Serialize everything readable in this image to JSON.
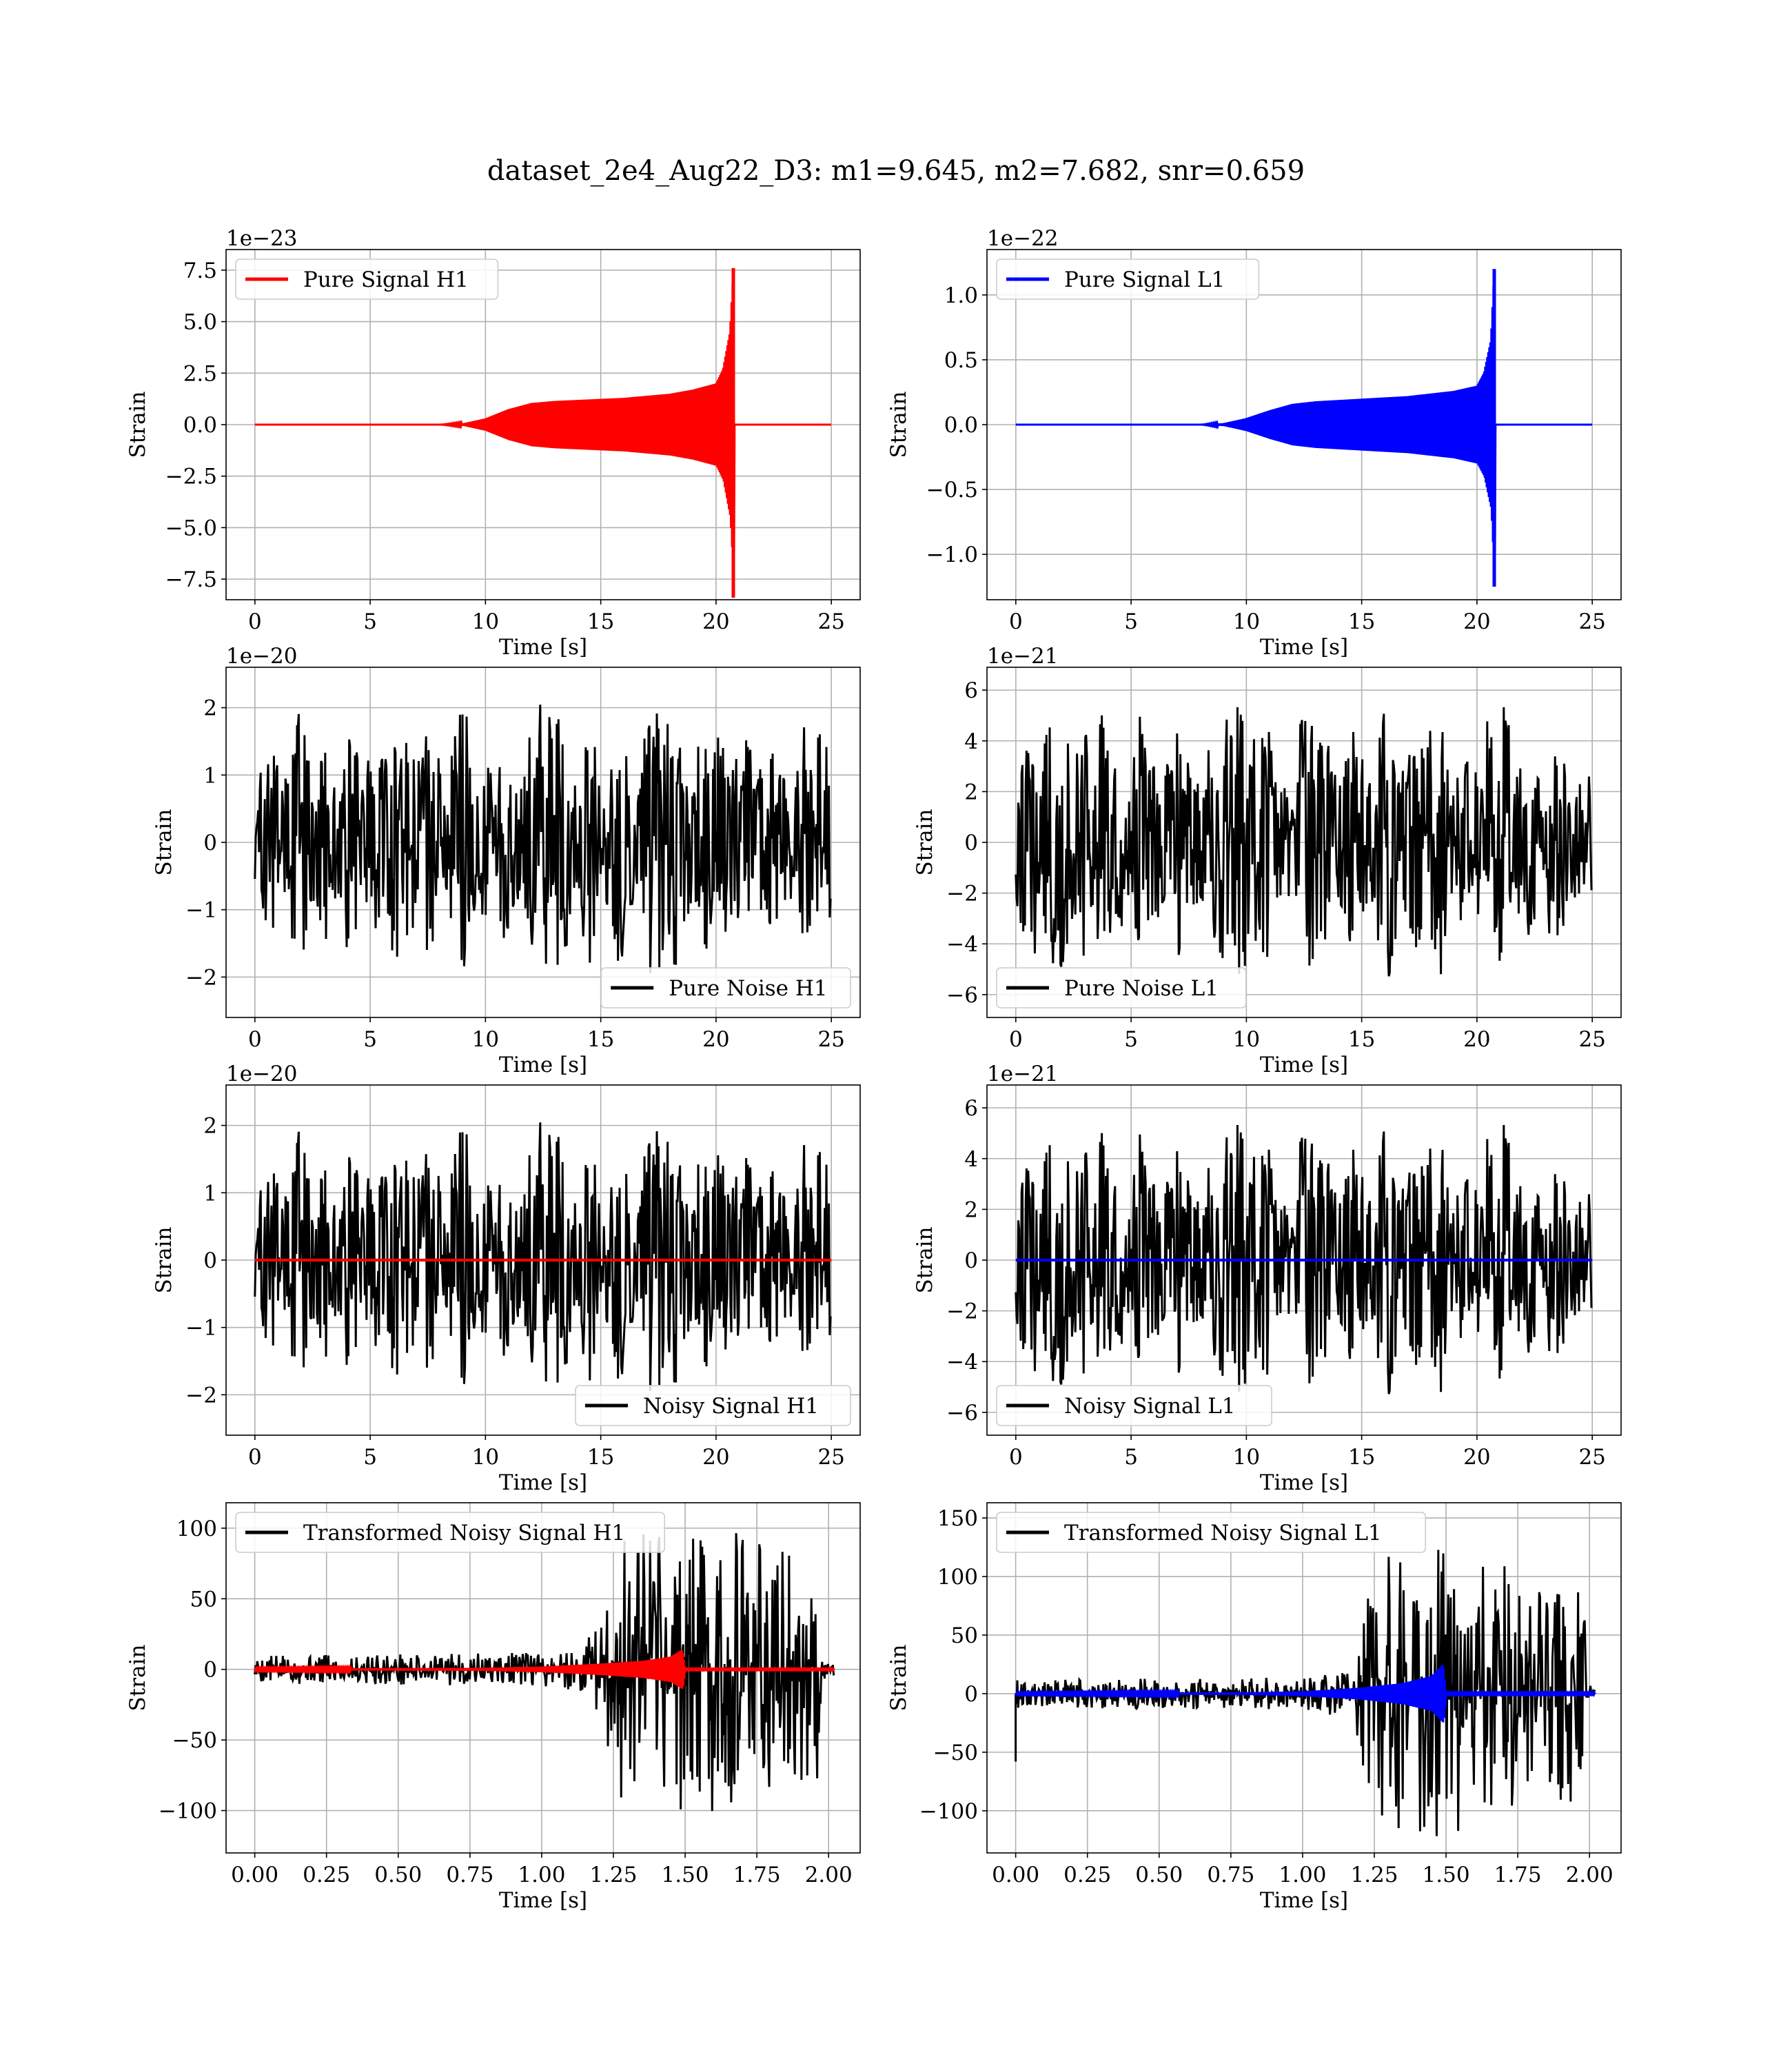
{
  "figure": {
    "title": "dataset_2e4_Aug22_D3: m1=9.645, m2=7.682, snr=0.659"
  },
  "colors": {
    "h1": "#ff0000",
    "l1": "#0000ff",
    "noise": "#000000",
    "grid": "#b0b0b0"
  },
  "chart_data": [
    {
      "id": "pure-signal-h1",
      "type": "line",
      "title": "",
      "xlabel": "Time [s]",
      "ylabel": "Strain",
      "xlim": [
        -1.25,
        26.25
      ],
      "ylim": [
        -8.5,
        8.5
      ],
      "exponent": "1e−23",
      "xticks": [
        0,
        5,
        10,
        15,
        20,
        25
      ],
      "xtick_labels": [
        "0",
        "5",
        "10",
        "15",
        "20",
        "25"
      ],
      "yticks": [
        -7.5,
        -5.0,
        -2.5,
        0.0,
        2.5,
        5.0,
        7.5
      ],
      "ytick_labels": [
        "−7.5",
        "−5.0",
        "−2.5",
        "0.0",
        "2.5",
        "5.0",
        "7.5"
      ],
      "legend": {
        "loc": "upper-left",
        "entries": [
          {
            "label": "Pure Signal H1",
            "color": "#ff0000"
          }
        ]
      },
      "grid": true,
      "series": [
        {
          "name": "Pure Signal H1",
          "kind": "chirp",
          "color": "#ff0000",
          "envelope_x": [
            0,
            8,
            9,
            10,
            11,
            12,
            13,
            14,
            15,
            16,
            17,
            18,
            19,
            20,
            20.3,
            20.6,
            20.75,
            20.8,
            25
          ],
          "envelope_amp": [
            0,
            0,
            0.05,
            0.3,
            0.75,
            1.05,
            1.15,
            1.2,
            1.25,
            1.3,
            1.4,
            1.5,
            1.7,
            2.0,
            2.7,
            4.5,
            7.6,
            0,
            0
          ],
          "peak_x": 20.75,
          "peak_max": 7.6,
          "peak_min": -8.4
        }
      ]
    },
    {
      "id": "pure-signal-l1",
      "type": "line",
      "title": "",
      "xlabel": "Time [s]",
      "ylabel": "Strain",
      "xlim": [
        -1.25,
        26.25
      ],
      "ylim": [
        -1.35,
        1.35
      ],
      "exponent": "1e−22",
      "xticks": [
        0,
        5,
        10,
        15,
        20,
        25
      ],
      "xtick_labels": [
        "0",
        "5",
        "10",
        "15",
        "20",
        "25"
      ],
      "yticks": [
        -1.0,
        -0.5,
        0.0,
        0.5,
        1.0
      ],
      "ytick_labels": [
        "−1.0",
        "−0.5",
        "0.0",
        "0.5",
        "1.0"
      ],
      "legend": {
        "loc": "upper-left",
        "entries": [
          {
            "label": "Pure Signal L1",
            "color": "#0000ff"
          }
        ]
      },
      "grid": true,
      "series": [
        {
          "name": "Pure Signal L1",
          "kind": "chirp",
          "color": "#0000ff",
          "envelope_x": [
            0,
            8,
            9,
            10,
            11,
            12,
            13,
            14,
            15,
            16,
            17,
            18,
            19,
            20,
            20.3,
            20.6,
            20.75,
            20.8,
            25
          ],
          "envelope_amp": [
            0,
            0,
            0.01,
            0.05,
            0.11,
            0.16,
            0.18,
            0.19,
            0.2,
            0.21,
            0.22,
            0.24,
            0.26,
            0.3,
            0.4,
            0.65,
            1.2,
            0,
            0
          ],
          "peak_x": 20.75,
          "peak_max": 1.2,
          "peak_min": -1.25
        }
      ]
    },
    {
      "id": "pure-noise-h1",
      "type": "line",
      "title": "",
      "xlabel": "Time [s]",
      "ylabel": "Strain",
      "xlim": [
        -1.25,
        26.25
      ],
      "ylim": [
        -2.6,
        2.6
      ],
      "exponent": "1e−20",
      "xticks": [
        0,
        5,
        10,
        15,
        20,
        25
      ],
      "xtick_labels": [
        "0",
        "5",
        "10",
        "15",
        "20",
        "25"
      ],
      "yticks": [
        -2,
        -1,
        0,
        1,
        2
      ],
      "ytick_labels": [
        "−2",
        "−1",
        "0",
        "1",
        "2"
      ],
      "legend": {
        "loc": "lower-right",
        "entries": [
          {
            "label": "Pure Noise H1",
            "color": "#000000"
          }
        ]
      },
      "grid": true,
      "series": [
        {
          "name": "Pure Noise H1",
          "kind": "noise",
          "color": "#000000",
          "x_range": [
            0,
            25
          ],
          "amp_max": 2.3,
          "seed": 11
        }
      ]
    },
    {
      "id": "pure-noise-l1",
      "type": "line",
      "title": "",
      "xlabel": "Time [s]",
      "ylabel": "Strain",
      "xlim": [
        -1.25,
        26.25
      ],
      "ylim": [
        -6.9,
        6.9
      ],
      "exponent": "1e−21",
      "xticks": [
        0,
        5,
        10,
        15,
        20,
        25
      ],
      "xtick_labels": [
        "0",
        "5",
        "10",
        "15",
        "20",
        "25"
      ],
      "yticks": [
        -6,
        -4,
        -2,
        0,
        2,
        4,
        6
      ],
      "ytick_labels": [
        "−6",
        "−4",
        "−2",
        "0",
        "2",
        "4",
        "6"
      ],
      "legend": {
        "loc": "lower-left",
        "entries": [
          {
            "label": "Pure Noise L1",
            "color": "#000000"
          }
        ]
      },
      "grid": true,
      "series": [
        {
          "name": "Pure Noise L1",
          "kind": "noise",
          "color": "#000000",
          "x_range": [
            0,
            25
          ],
          "amp_max": 6.2,
          "seed": 23
        }
      ]
    },
    {
      "id": "noisy-signal-h1",
      "type": "line",
      "title": "",
      "xlabel": "Time [s]",
      "ylabel": "Strain",
      "xlim": [
        -1.25,
        26.25
      ],
      "ylim": [
        -2.6,
        2.6
      ],
      "exponent": "1e−20",
      "xticks": [
        0,
        5,
        10,
        15,
        20,
        25
      ],
      "xtick_labels": [
        "0",
        "5",
        "10",
        "15",
        "20",
        "25"
      ],
      "yticks": [
        -2,
        -1,
        0,
        1,
        2
      ],
      "ytick_labels": [
        "−2",
        "−1",
        "0",
        "1",
        "2"
      ],
      "legend": {
        "loc": "lower-right",
        "entries": [
          {
            "label": "Noisy Signal H1",
            "color": "#000000"
          }
        ]
      },
      "grid": true,
      "series": [
        {
          "name": "Noisy Signal H1",
          "kind": "noise",
          "color": "#000000",
          "x_range": [
            0,
            25
          ],
          "amp_max": 2.3,
          "seed": 11
        },
        {
          "kind": "flat",
          "color": "#ff0000",
          "x_range": [
            0,
            25
          ],
          "y": 0
        }
      ]
    },
    {
      "id": "noisy-signal-l1",
      "type": "line",
      "title": "",
      "xlabel": "Time [s]",
      "ylabel": "Strain",
      "xlim": [
        -1.25,
        26.25
      ],
      "ylim": [
        -6.9,
        6.9
      ],
      "exponent": "1e−21",
      "xticks": [
        0,
        5,
        10,
        15,
        20,
        25
      ],
      "xtick_labels": [
        "0",
        "5",
        "10",
        "15",
        "20",
        "25"
      ],
      "yticks": [
        -6,
        -4,
        -2,
        0,
        2,
        4,
        6
      ],
      "ytick_labels": [
        "−6",
        "−4",
        "−2",
        "0",
        "2",
        "4",
        "6"
      ],
      "legend": {
        "loc": "lower-left",
        "entries": [
          {
            "label": "Noisy Signal L1",
            "color": "#000000"
          }
        ]
      },
      "grid": true,
      "series": [
        {
          "name": "Noisy Signal L1",
          "kind": "noise",
          "color": "#000000",
          "x_range": [
            0,
            25
          ],
          "amp_max": 6.2,
          "seed": 23
        },
        {
          "kind": "flat",
          "color": "#0000ff",
          "x_range": [
            0,
            25
          ],
          "y": 0
        }
      ]
    },
    {
      "id": "transformed-noisy-signal-h1",
      "type": "line",
      "title": "",
      "xlabel": "Time [s]",
      "ylabel": "Strain",
      "xlim": [
        -0.1,
        2.11
      ],
      "ylim": [
        -130,
        118
      ],
      "exponent": "",
      "xticks": [
        0,
        0.25,
        0.5,
        0.75,
        1.0,
        1.25,
        1.5,
        1.75,
        2.0
      ],
      "xtick_labels": [
        "0.00",
        "0.25",
        "0.50",
        "0.75",
        "1.00",
        "1.25",
        "1.50",
        "1.75",
        "2.00"
      ],
      "yticks": [
        -100,
        -50,
        0,
        50,
        100
      ],
      "ytick_labels": [
        "−100",
        "−50",
        "0",
        "50",
        "100"
      ],
      "legend": {
        "loc": "upper-left",
        "entries": [
          {
            "label": "Transformed Noisy Signal H1",
            "color": "#000000"
          }
        ]
      },
      "grid": true,
      "series": [
        {
          "name": "Transformed Noisy Signal H1",
          "kind": "transformed",
          "color": "#000000",
          "x_range": [
            0,
            2.02
          ],
          "env_x": [
            0,
            1.0,
            1.15,
            1.22,
            1.25,
            1.5,
            1.75,
            1.97,
            1.98,
            2.02
          ],
          "env_amp": [
            10,
            12,
            20,
            35,
            90,
            105,
            95,
            80,
            8,
            5
          ],
          "seed": 5
        },
        {
          "kind": "chirp-small",
          "color": "#ff0000",
          "x_range": [
            0,
            2.02
          ],
          "env_x": [
            0,
            0.8,
            1.0,
            1.2,
            1.35,
            1.45,
            1.49,
            1.5,
            2.02
          ],
          "env_amp": [
            0.5,
            1,
            2,
            4,
            6,
            9,
            14,
            0.3,
            0.3
          ]
        }
      ]
    },
    {
      "id": "transformed-noisy-signal-l1",
      "type": "line",
      "title": "",
      "xlabel": "Time [s]",
      "ylabel": "Strain",
      "xlim": [
        -0.1,
        2.11
      ],
      "ylim": [
        -136,
        163
      ],
      "exponent": "",
      "xticks": [
        0,
        0.25,
        0.5,
        0.75,
        1.0,
        1.25,
        1.5,
        1.75,
        2.0
      ],
      "xtick_labels": [
        "0.00",
        "0.25",
        "0.50",
        "0.75",
        "1.00",
        "1.25",
        "1.50",
        "1.75",
        "2.00"
      ],
      "yticks": [
        -100,
        -50,
        0,
        50,
        100,
        150
      ],
      "ytick_labels": [
        "−100",
        "−50",
        "0",
        "50",
        "100",
        "150"
      ],
      "legend": {
        "loc": "upper-left",
        "entries": [
          {
            "label": "Transformed Noisy Signal L1",
            "color": "#000000"
          }
        ]
      },
      "grid": true,
      "series": [
        {
          "name": "Transformed Noisy Signal L1",
          "kind": "transformed",
          "color": "#000000",
          "x_range": [
            0,
            2.02
          ],
          "env_x": [
            0,
            1.0,
            1.15,
            1.2,
            1.23,
            1.5,
            1.75,
            1.98,
            1.99,
            2.02
          ],
          "env_amp": [
            12,
            14,
            22,
            40,
            115,
            125,
            110,
            90,
            8,
            5
          ],
          "seed": 9,
          "spike": {
            "x": 0.0,
            "y": -58
          }
        },
        {
          "kind": "chirp-small",
          "color": "#0000ff",
          "x_range": [
            0,
            2.02
          ],
          "env_x": [
            0,
            0.8,
            1.0,
            1.2,
            1.35,
            1.45,
            1.49,
            1.5,
            2.02
          ],
          "env_amp": [
            0.5,
            1,
            2,
            5,
            9,
            15,
            25,
            0.5,
            0.5
          ]
        }
      ]
    }
  ]
}
